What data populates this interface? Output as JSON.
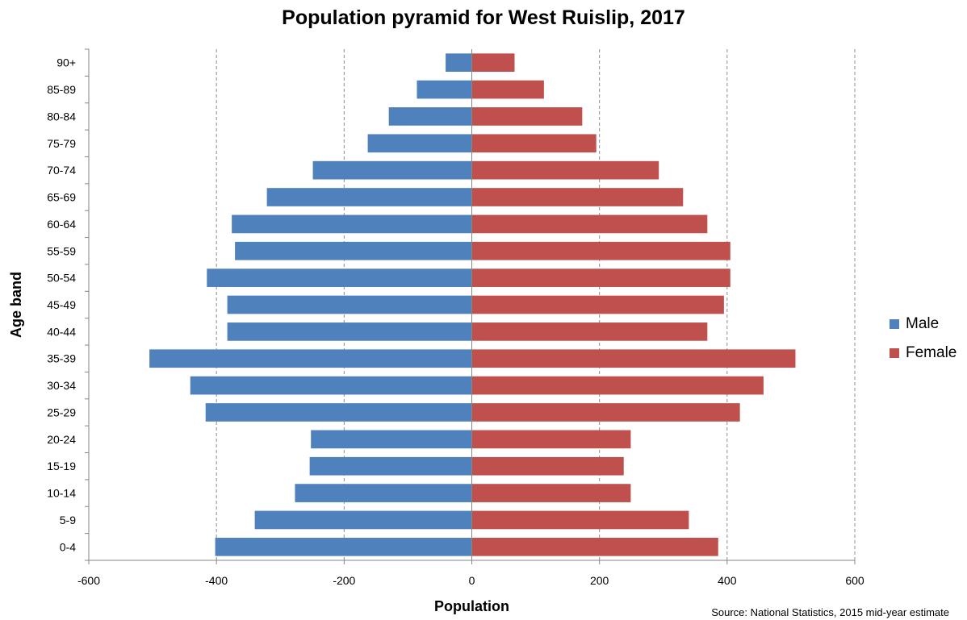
{
  "chart_data": {
    "type": "bar",
    "orientation": "horizontal",
    "title": "Population pyramid for West Ruislip, 2017",
    "xlabel": "Population",
    "ylabel": "Age band",
    "source": "Source: National Statistics, 2015 mid-year estimate",
    "categories": [
      "0-4",
      "5-9",
      "10-14",
      "15-19",
      "20-24",
      "25-29",
      "30-34",
      "35-39",
      "40-44",
      "45-49",
      "50-54",
      "55-59",
      "60-64",
      "65-69",
      "70-74",
      "75-79",
      "80-84",
      "85-89",
      "90+"
    ],
    "series": [
      {
        "name": "Male",
        "color": "#4F81BD",
        "values": [
          -402,
          -340,
          -277,
          -254,
          -252,
          -417,
          -441,
          -505,
          -383,
          -383,
          -415,
          -371,
          -376,
          -321,
          -249,
          -163,
          -130,
          -86,
          -41
        ]
      },
      {
        "name": "Female",
        "color": "#C0504D",
        "values": [
          386,
          340,
          249,
          238,
          249,
          420,
          457,
          507,
          369,
          395,
          405,
          405,
          369,
          331,
          293,
          195,
          173,
          113,
          67
        ]
      }
    ],
    "xlim": [
      -600,
      600
    ],
    "xticks": [
      -600,
      -400,
      -200,
      0,
      200,
      400,
      600
    ],
    "grid": "vertical dashed",
    "legend_position": "right"
  }
}
